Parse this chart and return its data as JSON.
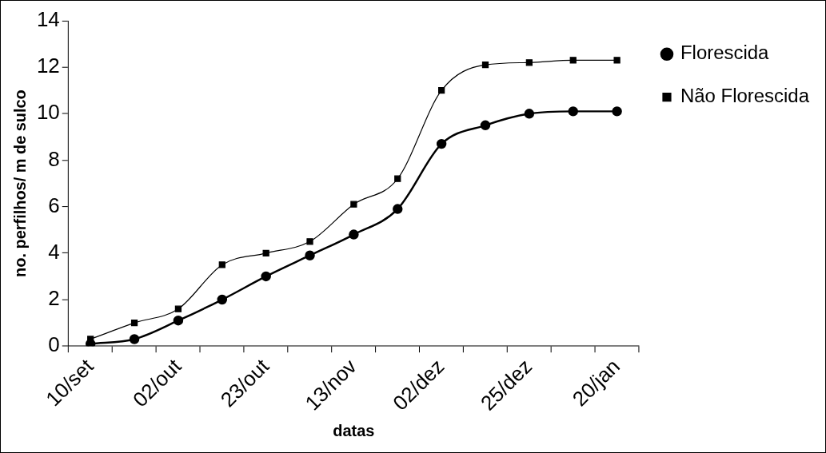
{
  "chart_data": {
    "type": "line",
    "xlabel": "datas",
    "ylabel": "no. perfilhos/ m de sulco",
    "categories": [
      "10/set",
      null,
      "02/out",
      null,
      "23/out",
      null,
      "13/nov",
      null,
      "02/dez",
      null,
      "25/dez",
      null,
      "20/jan"
    ],
    "series": [
      {
        "name": "Florescida",
        "color": "#000000",
        "marker": "circle",
        "values": [
          0.1,
          0.3,
          1.1,
          2.0,
          3.0,
          3.9,
          4.8,
          5.9,
          8.7,
          9.5,
          10.0,
          10.1,
          10.1
        ]
      },
      {
        "name": "Não Florescida",
        "color": "#000000",
        "marker": "square",
        "values": [
          0.3,
          1.0,
          1.6,
          3.5,
          4.0,
          4.5,
          6.1,
          7.2,
          11.0,
          12.1,
          12.2,
          12.3,
          12.3
        ]
      }
    ],
    "ylim": [
      0,
      14
    ],
    "yticks": [
      0,
      2,
      4,
      6,
      8,
      10,
      12,
      14
    ],
    "grid": false,
    "legend": "right"
  }
}
